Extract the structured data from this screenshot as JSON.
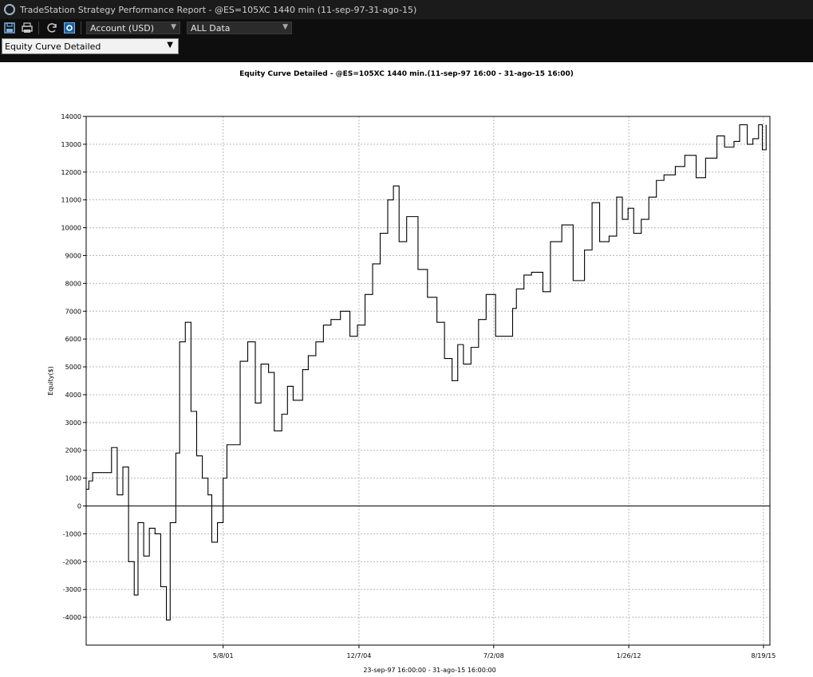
{
  "window": {
    "title": "TradeStation Strategy Performance Report - @ES=105XC 1440 min (11-sep-97-31-ago-15)"
  },
  "toolbar": {
    "account_select": "Account (USD)",
    "data_select": "ALL Data",
    "view_select": "Equity Curve Detailed",
    "icons": [
      "save-icon",
      "print-icon",
      "refresh-icon",
      "settings-icon"
    ]
  },
  "chart_data": {
    "type": "line",
    "title": "Equity Curve Detailed - @ES=105XC 1440 min.(11-sep-97 16:00 - 31-ago-15 16:00)",
    "ylabel": "Equity($)",
    "xlabel": "23-sep-97 16:00:00 - 31-ago-15 16:00:00",
    "ylim": [
      -5000,
      14000
    ],
    "yticks": [
      -4000,
      -3000,
      -2000,
      -1000,
      0,
      1000,
      2000,
      3000,
      4000,
      5000,
      6000,
      7000,
      8000,
      9000,
      10000,
      11000,
      12000,
      13000,
      14000
    ],
    "xlim": [
      1997.73,
      2015.8
    ],
    "xticks": [
      {
        "label": "5/8/01",
        "x": 2001.35
      },
      {
        "label": "12/7/04",
        "x": 2004.94
      },
      {
        "label": "7/2/08",
        "x": 2008.5
      },
      {
        "label": "1/26/12",
        "x": 2012.07
      },
      {
        "label": "8/19/15",
        "x": 2015.63
      }
    ],
    "grid": true,
    "color": "#000000",
    "series": [
      {
        "x": [
          1997.73,
          1997.8,
          1997.9,
          1998.0,
          1998.2,
          1998.4,
          1998.55,
          1998.7,
          1998.85,
          1999.0,
          1999.1,
          1999.25,
          1999.4,
          1999.55,
          1999.7,
          1999.85,
          1999.95,
          2000.1,
          2000.2,
          2000.35,
          2000.5,
          2000.65,
          2000.8,
          2000.95,
          2001.05,
          2001.2,
          2001.35,
          2001.45,
          2001.6,
          2001.8,
          2002.0,
          2002.2,
          2002.35,
          2002.55,
          2002.7,
          2002.9,
          2003.05,
          2003.2,
          2003.45,
          2003.6,
          2003.8,
          2004.0,
          2004.2,
          2004.45,
          2004.7,
          2004.9,
          2005.1,
          2005.3,
          2005.5,
          2005.7,
          2005.85,
          2006.0,
          2006.2,
          2006.5,
          2006.75,
          2007.0,
          2007.2,
          2007.4,
          2007.55,
          2007.7,
          2007.9,
          2008.1,
          2008.3,
          2008.55,
          2008.8,
          2009.0,
          2009.1,
          2009.3,
          2009.5,
          2009.8,
          2010.0,
          2010.3,
          2010.6,
          2010.9,
          2011.1,
          2011.3,
          2011.55,
          2011.75,
          2011.9,
          2012.05,
          2012.2,
          2012.4,
          2012.6,
          2012.8,
          2013.0,
          2013.3,
          2013.55,
          2013.85,
          2014.1,
          2014.4,
          2014.6,
          2014.85,
          2015.0,
          2015.2,
          2015.35,
          2015.5,
          2015.6,
          2015.7
        ],
        "y": [
          600,
          900,
          1200,
          1200,
          1200,
          2100,
          400,
          1400,
          -2000,
          -3200,
          -600,
          -1800,
          -800,
          -1000,
          -2900,
          -4100,
          -600,
          1900,
          5900,
          6600,
          3400,
          1800,
          1000,
          400,
          -1300,
          -600,
          1000,
          2200,
          2200,
          5200,
          5900,
          3700,
          5100,
          4800,
          2700,
          3300,
          4300,
          3800,
          4900,
          5400,
          5900,
          6500,
          6700,
          7000,
          6100,
          6500,
          7600,
          8700,
          9800,
          11000,
          11500,
          9500,
          10400,
          8500,
          7500,
          6600,
          5300,
          4500,
          5800,
          5100,
          5700,
          6700,
          7600,
          6100,
          6100,
          7100,
          7800,
          8300,
          8400,
          7700,
          9500,
          10100,
          8100,
          9200,
          10900,
          9500,
          9700,
          11100,
          10300,
          10700,
          9800,
          10300,
          11100,
          11700,
          11900,
          12200,
          12600,
          11800,
          12500,
          13300,
          12900,
          13100,
          13700,
          13000,
          13200,
          13700,
          12800,
          13700
        ]
      }
    ]
  }
}
